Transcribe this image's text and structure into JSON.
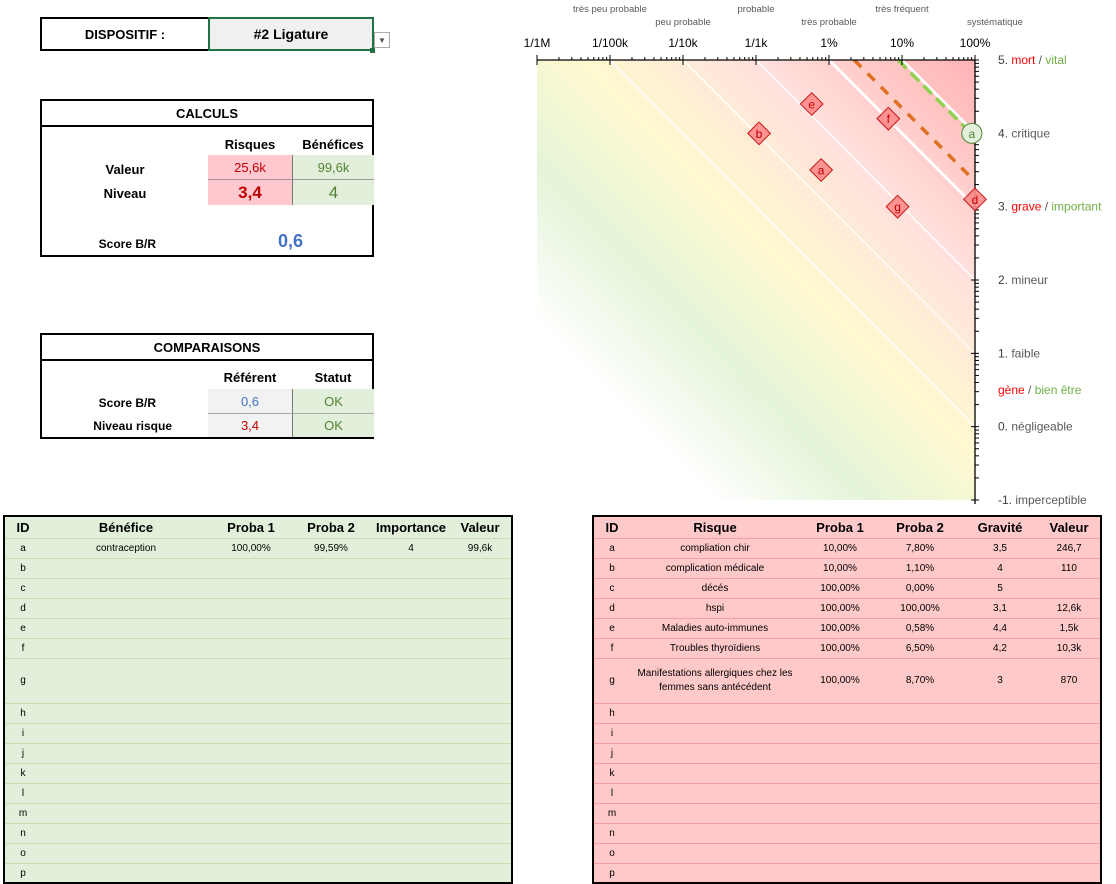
{
  "dispositif": {
    "label": "DISPOSITIF :",
    "value": "#2 Ligature"
  },
  "calculs": {
    "title": "CALCULS",
    "col_risques": "Risques",
    "col_benefices": "Bénéfices",
    "row_valeur": "Valeur",
    "row_niveau": "Niveau",
    "valeur_risques": "25,6k",
    "valeur_benefices": "99,6k",
    "niveau_risques": "3,4",
    "niveau_benefices": "4",
    "score_label": "Score B/R",
    "score_value": "0,6"
  },
  "comparaisons": {
    "title": "COMPARAISONS",
    "col_referent": "Référent",
    "col_statut": "Statut",
    "row_score": "Score B/R",
    "row_niveau": "Niveau risque",
    "score_referent": "0,6",
    "score_statut": "OK",
    "niveau_referent": "3,4",
    "niveau_statut": "OK"
  },
  "colors": {
    "risk_red": "#c00000",
    "benefit_green": "#548235",
    "score_blue": "#4472c4",
    "risk_bg": "#ffc7ce",
    "benefit_bg": "#e2efda",
    "label_red": "#ff0000",
    "label_green": "#70ad47",
    "orange_dash": "#e07020",
    "green_dash": "#92d050"
  },
  "chart_data": {
    "type": "scatter",
    "title": "",
    "xscale": "log",
    "xlim": [
      1e-06,
      1
    ],
    "ylim": [
      -1,
      5
    ],
    "x_ticks": [
      {
        "value": 1e-06,
        "label": "1/1M"
      },
      {
        "value": 1e-05,
        "label": "1/100k"
      },
      {
        "value": 0.0001,
        "label": "1/10k"
      },
      {
        "value": 0.001,
        "label": "1/1k"
      },
      {
        "value": 0.01,
        "label": "1%"
      },
      {
        "value": 0.1,
        "label": "10%"
      },
      {
        "value": 1,
        "label": "100%"
      }
    ],
    "x_categories": [
      {
        "value": 1e-05,
        "label": "très peu probable",
        "row": 0
      },
      {
        "value": 0.0001,
        "label": "peu probable",
        "row": 1
      },
      {
        "value": 0.001,
        "label": "probable",
        "row": 0
      },
      {
        "value": 0.01,
        "label": "très probable",
        "row": 1
      },
      {
        "value": 0.1,
        "label": "très fréquent",
        "row": 0
      },
      {
        "value": 1,
        "label": "systématique",
        "row": 1
      }
    ],
    "y_ticks": [
      {
        "value": 5,
        "num": "5",
        "parts": [
          {
            "t": "mort",
            "c": "red"
          },
          {
            "t": " / ",
            "c": "grey"
          },
          {
            "t": "vital",
            "c": "green"
          }
        ]
      },
      {
        "value": 4,
        "num": "4",
        "parts": [
          {
            "t": "critique",
            "c": "grey"
          }
        ]
      },
      {
        "value": 3,
        "num": "3",
        "parts": [
          {
            "t": "grave",
            "c": "red"
          },
          {
            "t": " / ",
            "c": "grey"
          },
          {
            "t": "important",
            "c": "green"
          }
        ]
      },
      {
        "value": 2,
        "num": "2",
        "parts": [
          {
            "t": "mineur",
            "c": "grey"
          }
        ]
      },
      {
        "value": 1,
        "num": "1",
        "parts": [
          {
            "t": "faible",
            "c": "grey"
          }
        ]
      },
      {
        "value": 0.5,
        "num": "",
        "parts": [
          {
            "t": "gène",
            "c": "red"
          },
          {
            "t": " / ",
            "c": "grey"
          },
          {
            "t": "bien être",
            "c": "green"
          }
        ]
      },
      {
        "value": 0,
        "num": "0",
        "parts": [
          {
            "t": "négligeable",
            "c": "grey"
          }
        ]
      },
      {
        "value": -1,
        "num": "-1",
        "parts": [
          {
            "t": "imperceptible",
            "c": "grey"
          }
        ]
      }
    ],
    "iso_lines": [
      {
        "x_at_top": 1e-05,
        "style": "thin"
      },
      {
        "x_at_top": 0.0001,
        "style": "thin"
      },
      {
        "x_at_top": 0.001,
        "style": "thin"
      },
      {
        "x_at_top": 0.01,
        "style": "thick"
      },
      {
        "x_at_top": 0.1,
        "style": "thick"
      }
    ],
    "level_lines": [
      {
        "name": "risk-level",
        "level": 3.4,
        "color": "#e07020"
      },
      {
        "name": "benefit-level",
        "level": 4,
        "color": "#92d050"
      }
    ],
    "series": [
      {
        "name": "Risques",
        "marker": "diamond",
        "points": [
          {
            "id": "a",
            "x": 0.0078,
            "y": 3.5
          },
          {
            "id": "b",
            "x": 0.0011,
            "y": 4
          },
          {
            "id": "d",
            "x": 1.0,
            "y": 3.1
          },
          {
            "id": "e",
            "x": 0.0058,
            "y": 4.4
          },
          {
            "id": "f",
            "x": 0.065,
            "y": 4.2
          },
          {
            "id": "g",
            "x": 0.087,
            "y": 3
          }
        ]
      },
      {
        "name": "Bénéfices",
        "marker": "circle",
        "points": [
          {
            "id": "a",
            "x": 0.9959,
            "y": 4
          }
        ]
      }
    ]
  },
  "benefices_table": {
    "headers": [
      "ID",
      "Bénéfice",
      "Proba 1",
      "Proba 2",
      "Importance",
      "Valeur"
    ],
    "rows": [
      [
        "a",
        "contraception",
        "100,00%",
        "99,59%",
        "4",
        "99,6k"
      ],
      [
        "b",
        "",
        "",
        "",
        "",
        ""
      ],
      [
        "c",
        "",
        "",
        "",
        "",
        ""
      ],
      [
        "d",
        "",
        "",
        "",
        "",
        ""
      ],
      [
        "e",
        "",
        "",
        "",
        "",
        ""
      ],
      [
        "f",
        "",
        "",
        "",
        "",
        ""
      ],
      [
        "g",
        "",
        "",
        "",
        "",
        ""
      ],
      [
        "h",
        "",
        "",
        "",
        "",
        ""
      ],
      [
        "i",
        "",
        "",
        "",
        "",
        ""
      ],
      [
        "j",
        "",
        "",
        "",
        "",
        ""
      ],
      [
        "k",
        "",
        "",
        "",
        "",
        ""
      ],
      [
        "l",
        "",
        "",
        "",
        "",
        ""
      ],
      [
        "m",
        "",
        "",
        "",
        "",
        ""
      ],
      [
        "n",
        "",
        "",
        "",
        "",
        ""
      ],
      [
        "o",
        "",
        "",
        "",
        "",
        ""
      ],
      [
        "p",
        "",
        "",
        "",
        "",
        ""
      ]
    ]
  },
  "risques_table": {
    "headers": [
      "ID",
      "Risque",
      "Proba 1",
      "Proba 2",
      "Gravité",
      "Valeur"
    ],
    "rows": [
      [
        "a",
        "compliation chir",
        "10,00%",
        "7,80%",
        "3,5",
        "246,7"
      ],
      [
        "b",
        "complication médicale",
        "10,00%",
        "1,10%",
        "4",
        "110"
      ],
      [
        "c",
        "décés",
        "100,00%",
        "0,00%",
        "5",
        ""
      ],
      [
        "d",
        "hspi",
        "100,00%",
        "100,00%",
        "3,1",
        "12,6k"
      ],
      [
        "e",
        "Maladies auto-immunes",
        "100,00%",
        "0,58%",
        "4,4",
        "1,5k"
      ],
      [
        "f",
        "Troubles thyroïdiens",
        "100,00%",
        "6,50%",
        "4,2",
        "10,3k"
      ],
      [
        "g",
        "Manifestations allergiques chez les femmes sans antécédent",
        "100,00%",
        "8,70%",
        "3",
        "870"
      ],
      [
        "h",
        "",
        "",
        "",
        "",
        ""
      ],
      [
        "i",
        "",
        "",
        "",
        "",
        ""
      ],
      [
        "j",
        "",
        "",
        "",
        "",
        ""
      ],
      [
        "k",
        "",
        "",
        "",
        "",
        ""
      ],
      [
        "l",
        "",
        "",
        "",
        "",
        ""
      ],
      [
        "m",
        "",
        "",
        "",
        "",
        ""
      ],
      [
        "n",
        "",
        "",
        "",
        "",
        ""
      ],
      [
        "o",
        "",
        "",
        "",
        "",
        ""
      ],
      [
        "p",
        "",
        "",
        "",
        "",
        ""
      ]
    ]
  }
}
